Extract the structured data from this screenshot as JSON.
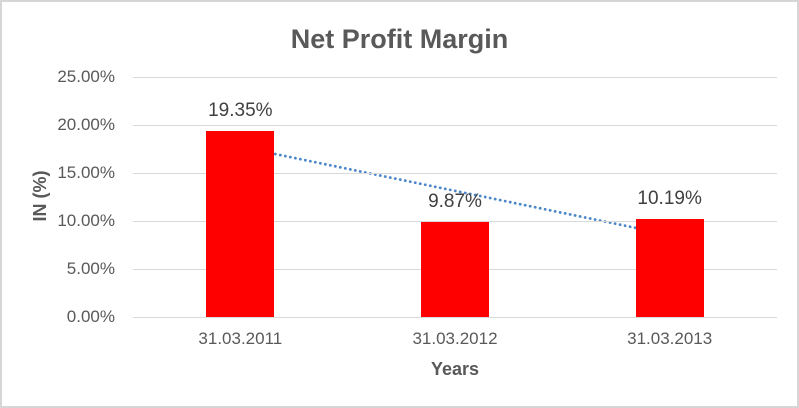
{
  "chart_data": {
    "type": "bar",
    "title": "Net Profit Margin",
    "xlabel": "Years",
    "ylabel": "IN (%)",
    "categories": [
      "31.03.2011",
      "31.03.2012",
      "31.03.2013"
    ],
    "values": [
      19.35,
      9.87,
      10.19
    ],
    "data_labels": [
      "19.35%",
      "9.87%",
      "10.19%"
    ],
    "ylim": [
      0,
      25
    ],
    "ytick_step": 5,
    "ytick_labels": [
      "0.00%",
      "5.00%",
      "10.00%",
      "15.00%",
      "20.00%",
      "25.00%"
    ],
    "grid": true,
    "legend": "none",
    "bar_color": "#FF0000",
    "trendline": {
      "type": "linear",
      "style": "dotted",
      "color": "#4A86C8",
      "start_value": 17.72,
      "end_value": 8.56
    }
  },
  "colors": {
    "background": "#FFFFFF",
    "border": "#D6D6D6",
    "gridline": "#D9D9D9",
    "title_text": "#595959",
    "axis_text": "#595959",
    "data_label_text": "#404040"
  }
}
